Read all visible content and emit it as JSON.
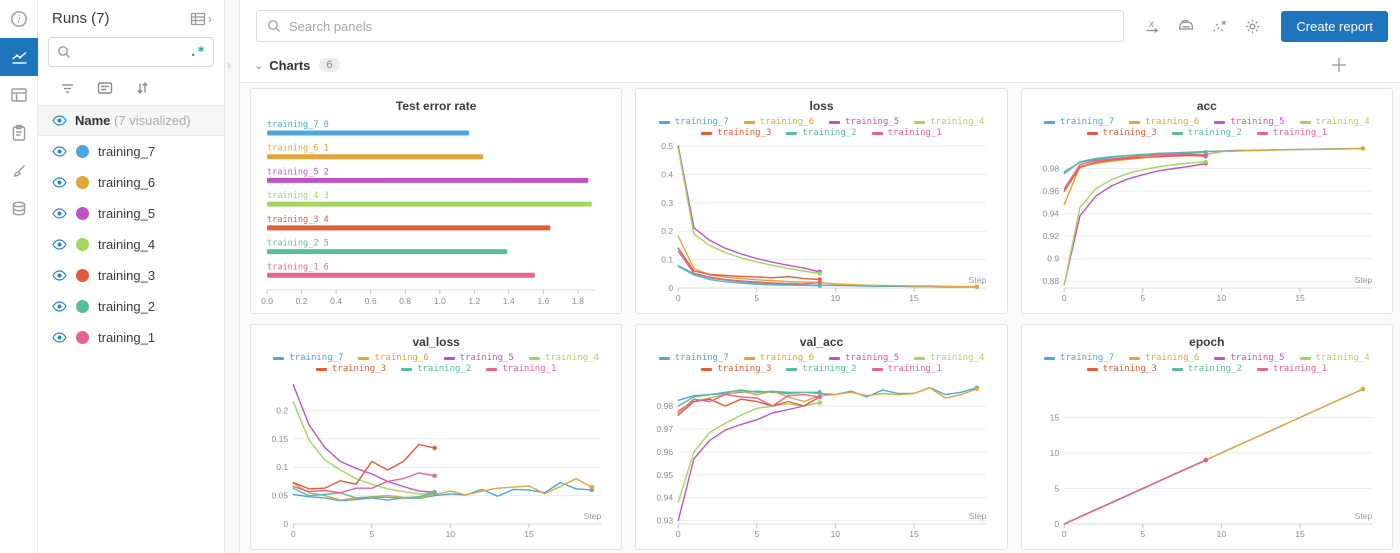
{
  "colors": {
    "accent": "#1d76bd",
    "eye": "#2a85c7",
    "regex": "#18a5bd",
    "grid": "#ececec",
    "axis": "#d8d8d8",
    "tick_text": "#8c8c8c"
  },
  "left_rail": {
    "items": [
      {
        "icon": "info-icon",
        "active": false
      },
      {
        "icon": "workspace-chart-icon",
        "active": true
      },
      {
        "icon": "table-icon",
        "active": false
      },
      {
        "icon": "logs-clipboard-icon",
        "active": false
      },
      {
        "icon": "sweep-brush-icon",
        "active": false
      },
      {
        "icon": "artifacts-database-icon",
        "active": false
      }
    ]
  },
  "sidebar": {
    "title": "Runs (7)",
    "search_value": "",
    "regex_label": ".*",
    "name_header": {
      "label": "Name",
      "suffix": "(7 visualized)"
    }
  },
  "runs": [
    {
      "name": "training_7",
      "color": "#4da6dc"
    },
    {
      "name": "training_6",
      "color": "#e2a43b"
    },
    {
      "name": "training_5",
      "color": "#bf53c4"
    },
    {
      "name": "training_4",
      "color": "#a3d661"
    },
    {
      "name": "training_3",
      "color": "#e25c3a"
    },
    {
      "name": "training_2",
      "color": "#58bd9c"
    },
    {
      "name": "training_1",
      "color": "#e8638d"
    }
  ],
  "topbar": {
    "search_placeholder": "Search panels",
    "create_report_label": "Create report",
    "icons": [
      "x-axis-icon",
      "smoothing-iron-icon",
      "outlier-scatter-icon",
      "settings-gear-icon"
    ]
  },
  "charts_header": {
    "label": "Charts",
    "count": "6"
  },
  "chart_data": [
    {
      "type": "bar",
      "title": "Test error rate",
      "orientation": "horizontal",
      "xlim": [
        0,
        1.9
      ],
      "xticks": [
        [
          0,
          "0.0"
        ],
        [
          0.2,
          "0.2"
        ],
        [
          0.4,
          "0.4"
        ],
        [
          0.6,
          "0.6"
        ],
        [
          0.8,
          "0.8"
        ],
        [
          1.0,
          "1.0"
        ],
        [
          1.2,
          "1.2"
        ],
        [
          1.4,
          "1.4"
        ],
        [
          1.6,
          "1.6"
        ],
        [
          1.8,
          "1.8"
        ]
      ],
      "bars": [
        {
          "label": "training_7",
          "index": 0,
          "value": 1.17,
          "color": "#4da6dc"
        },
        {
          "label": "training_6",
          "index": 1,
          "value": 1.25,
          "color": "#e2a43b"
        },
        {
          "label": "training_5",
          "index": 2,
          "value": 1.86,
          "color": "#bf53c4"
        },
        {
          "label": "training_4",
          "index": 3,
          "value": 1.88,
          "color": "#a3d661"
        },
        {
          "label": "training_3",
          "index": 4,
          "value": 1.64,
          "color": "#e25c3a"
        },
        {
          "label": "training_2",
          "index": 5,
          "value": 1.39,
          "color": "#58bd9c"
        },
        {
          "label": "training_1",
          "index": 6,
          "value": 1.55,
          "color": "#e8638d"
        }
      ]
    },
    {
      "type": "line",
      "title": "loss",
      "xlabel": "Step",
      "xlim": [
        0,
        19.6
      ],
      "ylim": [
        0,
        0.5
      ],
      "xticks": [
        [
          0,
          "0"
        ],
        [
          5,
          "5"
        ],
        [
          10,
          "10"
        ],
        [
          15,
          "15"
        ]
      ],
      "yticks": [
        [
          0,
          "0"
        ],
        [
          0.1,
          "0.1"
        ],
        [
          0.2,
          "0.2"
        ],
        [
          0.3,
          "0.3"
        ],
        [
          0.4,
          "0.4"
        ],
        [
          0.5,
          "0.5"
        ]
      ],
      "series": [
        {
          "name": "training_7",
          "color": "#4da6dc",
          "y": [
            0.078,
            0.05,
            0.036,
            0.028,
            0.022,
            0.018,
            0.015,
            0.013,
            0.011,
            0.01,
            0.009,
            0.008,
            0.007,
            0.006,
            0.006,
            0.005,
            0.005,
            0.004,
            0.004,
            0.004
          ]
        },
        {
          "name": "training_6",
          "color": "#e2a43b",
          "y": [
            0.183,
            0.068,
            0.046,
            0.038,
            0.033,
            0.029,
            0.026,
            0.023,
            0.021,
            0.019,
            0.014,
            0.012,
            0.01,
            0.009,
            0.008,
            0.007,
            0.007,
            0.006,
            0.005,
            0.005
          ]
        },
        {
          "name": "training_5",
          "color": "#bf53c4",
          "y": [
            0.5,
            0.212,
            0.168,
            0.14,
            0.12,
            0.104,
            0.091,
            0.08,
            0.07,
            0.057
          ]
        },
        {
          "name": "training_4",
          "color": "#a3d661",
          "y": [
            0.49,
            0.19,
            0.15,
            0.125,
            0.106,
            0.092,
            0.08,
            0.069,
            0.06,
            0.051
          ]
        },
        {
          "name": "training_3",
          "color": "#e25c3a",
          "y": [
            0.14,
            0.06,
            0.048,
            0.044,
            0.041,
            0.039,
            0.036,
            0.04,
            0.033,
            0.03
          ]
        },
        {
          "name": "training_2",
          "color": "#58bd9c",
          "y": [
            0.076,
            0.046,
            0.03,
            0.022,
            0.017,
            0.013,
            0.011,
            0.01,
            0.009,
            0.008
          ]
        },
        {
          "name": "training_1",
          "color": "#e8638d",
          "y": [
            0.13,
            0.052,
            0.038,
            0.03,
            0.025,
            0.021,
            0.018,
            0.016,
            0.014,
            0.02
          ]
        }
      ]
    },
    {
      "type": "line",
      "title": "acc",
      "xlabel": "Step",
      "xlim": [
        0,
        19.6
      ],
      "ylim": [
        0.874,
        1.0
      ],
      "xticks": [
        [
          0,
          "0"
        ],
        [
          5,
          "5"
        ],
        [
          10,
          "10"
        ],
        [
          15,
          "15"
        ]
      ],
      "yticks": [
        [
          0.88,
          "0.88"
        ],
        [
          0.9,
          "0.9"
        ],
        [
          0.92,
          "0.92"
        ],
        [
          0.94,
          "0.94"
        ],
        [
          0.96,
          "0.96"
        ],
        [
          0.98,
          "0.98"
        ]
      ],
      "series": [
        {
          "name": "training_7",
          "color": "#4da6dc",
          "y": [
            0.977,
            0.9855,
            0.988,
            0.99,
            0.9915,
            0.9925,
            0.9935,
            0.994,
            0.9945,
            0.995,
            0.9955,
            0.996,
            0.9962,
            0.9965,
            0.9968,
            0.997,
            0.9972,
            0.9975,
            0.9976,
            0.9978
          ]
        },
        {
          "name": "training_6",
          "color": "#e2a43b",
          "y": [
            0.948,
            0.982,
            0.9845,
            0.9865,
            0.988,
            0.9895,
            0.9905,
            0.9915,
            0.992,
            0.9925,
            0.995,
            0.9955,
            0.996,
            0.9963,
            0.9966,
            0.9968,
            0.997,
            0.9972,
            0.9974,
            0.9978
          ]
        },
        {
          "name": "training_5",
          "color": "#bf53c4",
          "y": [
            0.877,
            0.938,
            0.9555,
            0.9645,
            0.9705,
            0.9745,
            0.978,
            0.98,
            0.982,
            0.9845
          ]
        },
        {
          "name": "training_4",
          "color": "#a3d661",
          "y": [
            0.877,
            0.9455,
            0.962,
            0.97,
            0.9755,
            0.979,
            0.9815,
            0.9835,
            0.985,
            0.986
          ]
        },
        {
          "name": "training_3",
          "color": "#e25c3a",
          "y": [
            0.96,
            0.981,
            0.9855,
            0.9875,
            0.989,
            0.99,
            0.9905,
            0.991,
            0.9915,
            0.991
          ]
        },
        {
          "name": "training_2",
          "color": "#58bd9c",
          "y": [
            0.9755,
            0.986,
            0.989,
            0.9905,
            0.9915,
            0.9925,
            0.993,
            0.9935,
            0.994,
            0.9945
          ]
        },
        {
          "name": "training_1",
          "color": "#e8638d",
          "y": [
            0.962,
            0.9835,
            0.987,
            0.9885,
            0.99,
            0.9915,
            0.992,
            0.9925,
            0.993,
            0.992
          ]
        }
      ]
    },
    {
      "type": "line",
      "title": "val_loss",
      "xlabel": "Step",
      "xlim": [
        0,
        19.6
      ],
      "ylim": [
        0,
        0.25
      ],
      "xticks": [
        [
          0,
          "0"
        ],
        [
          5,
          "5"
        ],
        [
          10,
          "10"
        ],
        [
          15,
          "15"
        ]
      ],
      "yticks": [
        [
          0,
          "0"
        ],
        [
          0.05,
          "0.05"
        ],
        [
          0.1,
          "0.1"
        ],
        [
          0.15,
          "0.15"
        ],
        [
          0.2,
          "0.2"
        ]
      ],
      "series": [
        {
          "name": "training_7",
          "color": "#4da6dc",
          "y": [
            0.052,
            0.048,
            0.046,
            0.041,
            0.043,
            0.046,
            0.042,
            0.046,
            0.045,
            0.05,
            0.053,
            0.051,
            0.061,
            0.049,
            0.061,
            0.06,
            0.055,
            0.073,
            0.062,
            0.06
          ]
        },
        {
          "name": "training_6",
          "color": "#e2a43b",
          "y": [
            0.072,
            0.055,
            0.05,
            0.042,
            0.046,
            0.048,
            0.05,
            0.047,
            0.046,
            0.052,
            0.058,
            0.051,
            0.058,
            0.063,
            0.065,
            0.067,
            0.053,
            0.066,
            0.08,
            0.065
          ]
        },
        {
          "name": "training_5",
          "color": "#bf53c4",
          "y": [
            0.245,
            0.175,
            0.135,
            0.11,
            0.098,
            0.088,
            0.075,
            0.066,
            0.058,
            0.056
          ]
        },
        {
          "name": "training_4",
          "color": "#a3d661",
          "y": [
            0.215,
            0.148,
            0.113,
            0.095,
            0.08,
            0.07,
            0.062,
            0.057,
            0.053,
            0.055
          ]
        },
        {
          "name": "training_3",
          "color": "#e25c3a",
          "y": [
            0.073,
            0.062,
            0.063,
            0.076,
            0.07,
            0.11,
            0.095,
            0.11,
            0.14,
            0.134
          ]
        },
        {
          "name": "training_2",
          "color": "#58bd9c",
          "y": [
            0.063,
            0.05,
            0.052,
            0.055,
            0.046,
            0.047,
            0.047,
            0.046,
            0.048,
            0.055
          ]
        },
        {
          "name": "training_1",
          "color": "#e8638d",
          "y": [
            0.066,
            0.057,
            0.059,
            0.055,
            0.063,
            0.063,
            0.075,
            0.08,
            0.09,
            0.085
          ]
        }
      ]
    },
    {
      "type": "line",
      "title": "val_acc",
      "xlabel": "Step",
      "xlim": [
        0,
        19.6
      ],
      "ylim": [
        0.9285,
        0.9905
      ],
      "xticks": [
        [
          0,
          "0"
        ],
        [
          5,
          "5"
        ],
        [
          10,
          "10"
        ],
        [
          15,
          "15"
        ]
      ],
      "yticks": [
        [
          0.93,
          "0.93"
        ],
        [
          0.94,
          "0.94"
        ],
        [
          0.95,
          "0.95"
        ],
        [
          0.96,
          "0.96"
        ],
        [
          0.97,
          "0.97"
        ],
        [
          0.98,
          "0.98"
        ]
      ],
      "series": [
        {
          "name": "training_7",
          "color": "#4da6dc",
          "y": [
            0.9825,
            0.9845,
            0.985,
            0.9855,
            0.986,
            0.9865,
            0.986,
            0.9855,
            0.986,
            0.9855,
            0.985,
            0.9865,
            0.984,
            0.987,
            0.9855,
            0.9855,
            0.988,
            0.985,
            0.986,
            0.988
          ]
        },
        {
          "name": "training_6",
          "color": "#e2a43b",
          "y": [
            0.978,
            0.982,
            0.9835,
            0.985,
            0.9865,
            0.985,
            0.9865,
            0.984,
            0.982,
            0.9845,
            0.985,
            0.986,
            0.9845,
            0.9855,
            0.985,
            0.9855,
            0.988,
            0.9835,
            0.985,
            0.9875
          ]
        },
        {
          "name": "training_5",
          "color": "#bf53c4",
          "y": [
            0.93,
            0.957,
            0.965,
            0.9695,
            0.972,
            0.974,
            0.977,
            0.9785,
            0.98,
            0.9815
          ]
        },
        {
          "name": "training_4",
          "color": "#a3d661",
          "y": [
            0.938,
            0.96,
            0.9685,
            0.9725,
            0.976,
            0.979,
            0.98,
            0.981,
            0.98,
            0.9815
          ]
        },
        {
          "name": "training_3",
          "color": "#e25c3a",
          "y": [
            0.976,
            0.982,
            0.983,
            0.98,
            0.983,
            0.982,
            0.98,
            0.982,
            0.98,
            0.984
          ]
        },
        {
          "name": "training_2",
          "color": "#58bd9c",
          "y": [
            0.98,
            0.984,
            0.985,
            0.986,
            0.987,
            0.986,
            0.9865,
            0.986,
            0.986,
            0.986
          ]
        },
        {
          "name": "training_1",
          "color": "#e8638d",
          "y": [
            0.977,
            0.983,
            0.982,
            0.985,
            0.984,
            0.9835,
            0.98,
            0.9845,
            0.985,
            0.984
          ]
        }
      ]
    },
    {
      "type": "line",
      "title": "epoch",
      "xlabel": "Step",
      "xlim": [
        0,
        19.6
      ],
      "ylim": [
        0,
        20
      ],
      "xticks": [
        [
          0,
          "0"
        ],
        [
          5,
          "5"
        ],
        [
          10,
          "10"
        ],
        [
          15,
          "15"
        ]
      ],
      "yticks": [
        [
          0,
          "0"
        ],
        [
          5,
          "5"
        ],
        [
          10,
          "10"
        ],
        [
          15,
          "15"
        ]
      ],
      "series": [
        {
          "name": "training_7",
          "color": "#4da6dc",
          "y": [
            0,
            1,
            2,
            3,
            4,
            5,
            6,
            7,
            8,
            9,
            10,
            11,
            12,
            13,
            14,
            15,
            16,
            17,
            18,
            19
          ]
        },
        {
          "name": "training_6",
          "color": "#e2a43b",
          "y": [
            0,
            1,
            2,
            3,
            4,
            5,
            6,
            7,
            8,
            9,
            10,
            11,
            12,
            13,
            14,
            15,
            16,
            17,
            18,
            19
          ]
        },
        {
          "name": "training_5",
          "color": "#bf53c4",
          "y": [
            0,
            1,
            2,
            3,
            4,
            5,
            6,
            7,
            8,
            9
          ]
        },
        {
          "name": "training_4",
          "color": "#a3d661",
          "y": [
            0,
            1,
            2,
            3,
            4,
            5,
            6,
            7,
            8,
            9
          ]
        },
        {
          "name": "training_3",
          "color": "#e25c3a",
          "y": [
            0,
            1,
            2,
            3,
            4,
            5,
            6,
            7,
            8,
            9
          ]
        },
        {
          "name": "training_2",
          "color": "#58bd9c",
          "y": [
            0,
            1,
            2,
            3,
            4,
            5,
            6,
            7,
            8,
            9
          ]
        },
        {
          "name": "training_1",
          "color": "#e8638d",
          "y": [
            0,
            1,
            2,
            3,
            4,
            5,
            6,
            7,
            8,
            9
          ]
        }
      ]
    }
  ]
}
